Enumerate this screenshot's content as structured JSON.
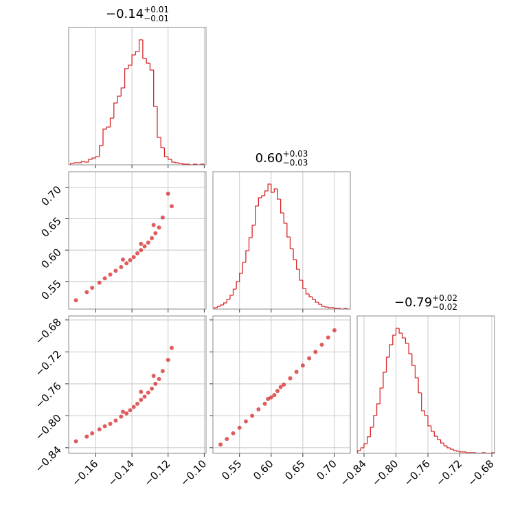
{
  "chart_data": [
    {
      "type": "histogram",
      "title": "−0.14",
      "title_upper": "+0.01",
      "title_lower": "−0.01",
      "color": "#d62728",
      "grid": true,
      "bins": [
        -0.174,
        -0.172,
        -0.17,
        -0.168,
        -0.166,
        -0.164,
        -0.162,
        -0.16,
        -0.158,
        -0.156,
        -0.154,
        -0.152,
        -0.15,
        -0.148,
        -0.146,
        -0.144,
        -0.142,
        -0.14,
        -0.138,
        -0.136,
        -0.134,
        -0.132,
        -0.13,
        -0.128,
        -0.126,
        -0.124,
        -0.122,
        -0.12,
        -0.118,
        -0.116,
        -0.114,
        -0.112,
        -0.11,
        -0.108,
        -0.106,
        -0.104,
        -0.102,
        -0.1
      ],
      "counts": [
        2,
        3,
        3,
        5,
        4,
        8,
        10,
        12,
        28,
        52,
        55,
        68,
        90,
        100,
        112,
        140,
        145,
        160,
        165,
        182,
        155,
        148,
        138,
        85,
        40,
        25,
        12,
        8,
        4,
        3,
        2,
        1,
        1,
        0,
        1,
        0,
        1
      ],
      "xlim": [
        -0.175,
        -0.099
      ],
      "ylim": [
        0,
        200
      ],
      "xticks": [
        {
          "value": -0.16,
          "label": "−0.16"
        },
        {
          "value": -0.14,
          "label": "−0.14"
        },
        {
          "value": -0.12,
          "label": "−0.12"
        },
        {
          "value": -0.1,
          "label": "−0.10"
        }
      ]
    },
    {
      "type": "scatter",
      "color": "#d62728",
      "grid": true,
      "x": [
        -0.171,
        -0.165,
        -0.162,
        -0.158,
        -0.155,
        -0.152,
        -0.149,
        -0.146,
        -0.143,
        -0.141,
        -0.139,
        -0.137,
        -0.135,
        -0.133,
        -0.131,
        -0.129,
        -0.127,
        -0.125,
        -0.123,
        -0.135,
        -0.128,
        -0.12,
        -0.145,
        -0.118
      ],
      "y": [
        0.52,
        0.533,
        0.54,
        0.548,
        0.555,
        0.561,
        0.567,
        0.573,
        0.579,
        0.584,
        0.589,
        0.595,
        0.6,
        0.606,
        0.612,
        0.619,
        0.627,
        0.636,
        0.652,
        0.61,
        0.64,
        0.69,
        0.585,
        0.67
      ],
      "xlim": [
        -0.175,
        -0.099
      ],
      "ylim": [
        0.506,
        0.725
      ],
      "xticks": [
        {
          "value": -0.16,
          "label": "−0.16"
        },
        {
          "value": -0.14,
          "label": "−0.14"
        },
        {
          "value": -0.12,
          "label": "−0.12"
        },
        {
          "value": -0.1,
          "label": "−0.10"
        }
      ],
      "yticks": [
        0.55,
        {
          "value": 0.6,
          "label": "0.60"
        },
        0.65,
        {
          "value": 0.7,
          "label": "0.70"
        }
      ]
    },
    {
      "type": "histogram",
      "title": "0.60",
      "title_upper": "+0.03",
      "title_lower": "−0.03",
      "color": "#d62728",
      "grid": true,
      "bins": [
        0.51,
        0.515,
        0.52,
        0.525,
        0.53,
        0.535,
        0.54,
        0.545,
        0.55,
        0.555,
        0.56,
        0.565,
        0.57,
        0.575,
        0.58,
        0.585,
        0.59,
        0.595,
        0.6,
        0.605,
        0.61,
        0.615,
        0.62,
        0.625,
        0.63,
        0.635,
        0.64,
        0.645,
        0.65,
        0.655,
        0.66,
        0.665,
        0.67,
        0.675,
        0.68,
        0.685,
        0.69,
        0.695,
        0.7,
        0.705,
        0.71,
        0.715,
        0.72,
        0.725
      ],
      "counts": [
        2,
        4,
        6,
        9,
        14,
        20,
        29,
        40,
        52,
        68,
        85,
        104,
        122,
        150,
        162,
        165,
        172,
        182,
        170,
        175,
        160,
        140,
        125,
        105,
        88,
        72,
        58,
        42,
        30,
        22,
        18,
        14,
        10,
        7,
        4,
        3,
        2,
        2,
        1,
        1,
        0,
        1,
        0
      ],
      "xlim": [
        0.508,
        0.725
      ],
      "ylim": [
        0,
        200
      ],
      "xticks": [
        0.55,
        {
          "value": 0.6,
          "label": "0.60"
        },
        0.65,
        {
          "value": 0.7,
          "label": "0.70"
        }
      ]
    },
    {
      "type": "scatter",
      "color": "#d62728",
      "grid": true,
      "x": [
        -0.171,
        -0.165,
        -0.162,
        -0.158,
        -0.155,
        -0.152,
        -0.149,
        -0.146,
        -0.143,
        -0.141,
        -0.139,
        -0.137,
        -0.135,
        -0.133,
        -0.131,
        -0.129,
        -0.127,
        -0.125,
        -0.123,
        -0.135,
        -0.128,
        -0.12,
        -0.145,
        -0.118
      ],
      "y": [
        -0.832,
        -0.826,
        -0.822,
        -0.817,
        -0.813,
        -0.81,
        -0.806,
        -0.801,
        -0.797,
        -0.793,
        -0.789,
        -0.785,
        -0.78,
        -0.776,
        -0.771,
        -0.766,
        -0.76,
        -0.754,
        -0.744,
        -0.77,
        -0.75,
        -0.73,
        -0.795,
        -0.715
      ],
      "xlim": [
        -0.175,
        -0.099
      ],
      "ylim": [
        -0.847,
        -0.675
      ],
      "xticks": [
        {
          "value": -0.16,
          "label": "−0.16"
        },
        {
          "value": -0.14,
          "label": "−0.14"
        },
        {
          "value": -0.12,
          "label": "−0.12"
        },
        {
          "value": -0.1,
          "label": "−0.10"
        }
      ],
      "yticks": [
        {
          "value": -0.84,
          "label": "−0.84"
        },
        {
          "value": -0.8,
          "label": "−0.80"
        },
        {
          "value": -0.76,
          "label": "−0.76"
        },
        {
          "value": -0.72,
          "label": "−0.72"
        },
        {
          "value": -0.68,
          "label": "−0.68"
        }
      ]
    },
    {
      "type": "scatter",
      "color": "#d62728",
      "grid": true,
      "x": [
        0.52,
        0.53,
        0.54,
        0.55,
        0.56,
        0.57,
        0.58,
        0.59,
        0.6,
        0.61,
        0.62,
        0.63,
        0.64,
        0.65,
        0.66,
        0.67,
        0.68,
        0.69,
        0.7,
        0.595,
        0.605,
        0.615
      ],
      "y": [
        -0.836,
        -0.829,
        -0.822,
        -0.815,
        -0.807,
        -0.8,
        -0.792,
        -0.785,
        -0.777,
        -0.769,
        -0.761,
        -0.753,
        -0.745,
        -0.737,
        -0.728,
        -0.72,
        -0.711,
        -0.702,
        -0.693,
        -0.779,
        -0.774,
        -0.764
      ],
      "xlim": [
        0.508,
        0.725
      ],
      "ylim": [
        -0.847,
        -0.675
      ],
      "xticks": [
        0.55,
        {
          "value": 0.6,
          "label": "0.60"
        },
        0.65,
        {
          "value": 0.7,
          "label": "0.70"
        }
      ],
      "yticks": [
        {
          "value": -0.84,
          "label": "−0.84"
        },
        {
          "value": -0.8,
          "label": "−0.80"
        },
        {
          "value": -0.76,
          "label": "−0.76"
        },
        {
          "value": -0.72,
          "label": "−0.72"
        },
        {
          "value": -0.68,
          "label": "−0.68"
        }
      ]
    },
    {
      "type": "histogram",
      "title": "−0.79",
      "title_upper": "+0.02",
      "title_lower": "−0.02",
      "color": "#d62728",
      "grid": true,
      "bins": [
        -0.848,
        -0.844,
        -0.84,
        -0.836,
        -0.832,
        -0.828,
        -0.824,
        -0.82,
        -0.816,
        -0.812,
        -0.808,
        -0.804,
        -0.8,
        -0.796,
        -0.792,
        -0.788,
        -0.784,
        -0.78,
        -0.776,
        -0.772,
        -0.768,
        -0.764,
        -0.76,
        -0.756,
        -0.752,
        -0.748,
        -0.744,
        -0.74,
        -0.736,
        -0.732,
        -0.728,
        -0.724,
        -0.72,
        -0.716,
        -0.712,
        -0.708,
        -0.704,
        -0.7,
        -0.696,
        -0.692,
        -0.688,
        -0.684,
        -0.68,
        -0.676
      ],
      "counts": [
        4,
        8,
        14,
        24,
        38,
        55,
        72,
        95,
        118,
        140,
        158,
        172,
        182,
        175,
        168,
        160,
        145,
        128,
        110,
        88,
        62,
        55,
        40,
        32,
        25,
        20,
        15,
        11,
        8,
        6,
        4,
        3,
        2,
        2,
        1,
        1,
        1,
        0,
        0,
        1,
        0,
        0,
        1
      ],
      "xlim": [
        -0.8486,
        -0.6766
      ],
      "ylim": [
        0,
        200
      ],
      "xticks": [
        {
          "value": -0.84,
          "label": "−0.84"
        },
        {
          "value": -0.8,
          "label": "−0.80"
        },
        {
          "value": -0.76,
          "label": "−0.76"
        },
        {
          "value": -0.72,
          "label": "−0.72"
        },
        {
          "value": -0.68,
          "label": "−0.68"
        }
      ]
    }
  ]
}
